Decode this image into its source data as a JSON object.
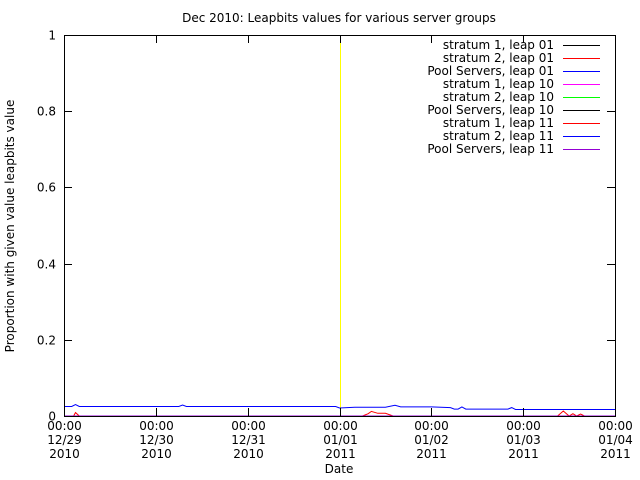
{
  "chart_data": {
    "type": "line",
    "title": "Dec 2010: Leapbits values for various server groups",
    "xlabel": "Date",
    "ylabel": "Proportion with given value leapbits value",
    "xlim": [
      "2010-12-29 00:00",
      "2011-01-04 00:00"
    ],
    "ylim": [
      0,
      1
    ],
    "x_ticks": [
      {
        "x": "2010-12-29 00:00",
        "label": [
          "00:00",
          "12/29",
          "2010"
        ]
      },
      {
        "x": "2010-12-30 00:00",
        "label": [
          "00:00",
          "12/30",
          "2010"
        ]
      },
      {
        "x": "2010-12-31 00:00",
        "label": [
          "00:00",
          "12/31",
          "2010"
        ]
      },
      {
        "x": "2011-01-01 00:00",
        "label": [
          "00:00",
          "01/01",
          "2011"
        ]
      },
      {
        "x": "2011-01-02 00:00",
        "label": [
          "00:00",
          "01/02",
          "2011"
        ]
      },
      {
        "x": "2011-01-03 00:00",
        "label": [
          "00:00",
          "01/03",
          "2011"
        ]
      },
      {
        "x": "2011-01-04 00:00",
        "label": [
          "00:00",
          "01/04",
          "2011"
        ]
      }
    ],
    "y_ticks": [
      {
        "y": 0,
        "label": "0"
      },
      {
        "y": 0.2,
        "label": "0.2"
      },
      {
        "y": 0.4,
        "label": "0.4"
      },
      {
        "y": 0.6,
        "label": "0.6"
      },
      {
        "y": 0.8,
        "label": "0.8"
      },
      {
        "y": 1,
        "label": "1"
      }
    ],
    "grid": false,
    "legend_position": "top-right",
    "annotations": [
      {
        "type": "vertical-line",
        "x": "2011-01-01 00:00",
        "color": "#ffff00"
      }
    ],
    "series": [
      {
        "name": "stratum 1, leap 01",
        "color": "#000000",
        "x": [
          "2010-12-29 00:00",
          "2011-01-04 00:00"
        ],
        "y": [
          0,
          0
        ]
      },
      {
        "name": "stratum 2, leap 01",
        "color": "#ff0000",
        "x": [
          "2010-12-29 00:00",
          "2010-12-29 02:30",
          "2010-12-29 03:00",
          "2010-12-29 04:00",
          "2011-01-01 00:00",
          "2011-01-01 06:00",
          "2011-01-01 07:30",
          "2011-01-01 08:20",
          "2011-01-01 10:00",
          "2011-01-01 12:00",
          "2011-01-01 14:00",
          "2011-01-03 07:00",
          "2011-01-03 09:00",
          "2011-01-03 10:30",
          "2011-01-03 12:00",
          "2011-01-03 13:00",
          "2011-01-03 14:00",
          "2011-01-03 15:00",
          "2011-01-03 16:00",
          "2011-01-04 00:00"
        ],
        "y": [
          0,
          0,
          0.009,
          0,
          0,
          0,
          0.006,
          0.012,
          0.007,
          0.007,
          0,
          0,
          0,
          0.013,
          0,
          0.006,
          0,
          0.005,
          0,
          0
        ]
      },
      {
        "name": "Pool Servers, leap 01",
        "color": "#0000ff",
        "x": [
          "2010-12-29 00:00",
          "2010-12-29 02:00",
          "2010-12-29 03:00",
          "2010-12-29 04:00",
          "2010-12-30 06:00",
          "2010-12-30 07:00",
          "2010-12-30 08:00",
          "2010-12-31 23:00",
          "2011-01-01 00:00",
          "2011-01-01 04:00",
          "2011-01-01 12:00",
          "2011-01-01 14:30",
          "2011-01-01 16:00",
          "2011-01-02 00:00",
          "2011-01-02 05:00",
          "2011-01-02 06:00",
          "2011-01-02 07:00",
          "2011-01-02 08:00",
          "2011-01-02 09:00",
          "2011-01-02 20:00",
          "2011-01-02 21:00",
          "2011-01-02 22:00",
          "2011-01-04 00:00"
        ],
        "y": [
          0.025,
          0.025,
          0.03,
          0.025,
          0.025,
          0.029,
          0.025,
          0.025,
          0.021,
          0.023,
          0.023,
          0.028,
          0.024,
          0.024,
          0.022,
          0.018,
          0.018,
          0.024,
          0.018,
          0.018,
          0.022,
          0.017,
          0.017
        ]
      },
      {
        "name": "stratum 1, leap 10",
        "color": "#ff00ff",
        "x": [
          "2010-12-29 00:00",
          "2011-01-04 00:00"
        ],
        "y": [
          0,
          0
        ]
      },
      {
        "name": "stratum 2, leap 10",
        "color": "#00ff00",
        "x": [
          "2010-12-29 00:00",
          "2011-01-04 00:00"
        ],
        "y": [
          0,
          0
        ]
      },
      {
        "name": "Pool Servers, leap 10",
        "color": "#000000",
        "x": [
          "2010-12-29 00:00",
          "2011-01-04 00:00"
        ],
        "y": [
          0,
          0
        ]
      },
      {
        "name": "stratum 1, leap 11",
        "color": "#ff0000",
        "x": [
          "2010-12-29 00:00",
          "2011-01-04 00:00"
        ],
        "y": [
          0,
          0
        ]
      },
      {
        "name": "stratum 2, leap 11",
        "color": "#0000ff",
        "x": [
          "2010-12-29 00:00",
          "2011-01-04 00:00"
        ],
        "y": [
          0,
          0
        ]
      },
      {
        "name": "Pool Servers, leap 11",
        "color": "#9400d3",
        "x": [
          "2010-12-29 00:00",
          "2011-01-04 00:00"
        ],
        "y": [
          0,
          0
        ]
      }
    ]
  }
}
